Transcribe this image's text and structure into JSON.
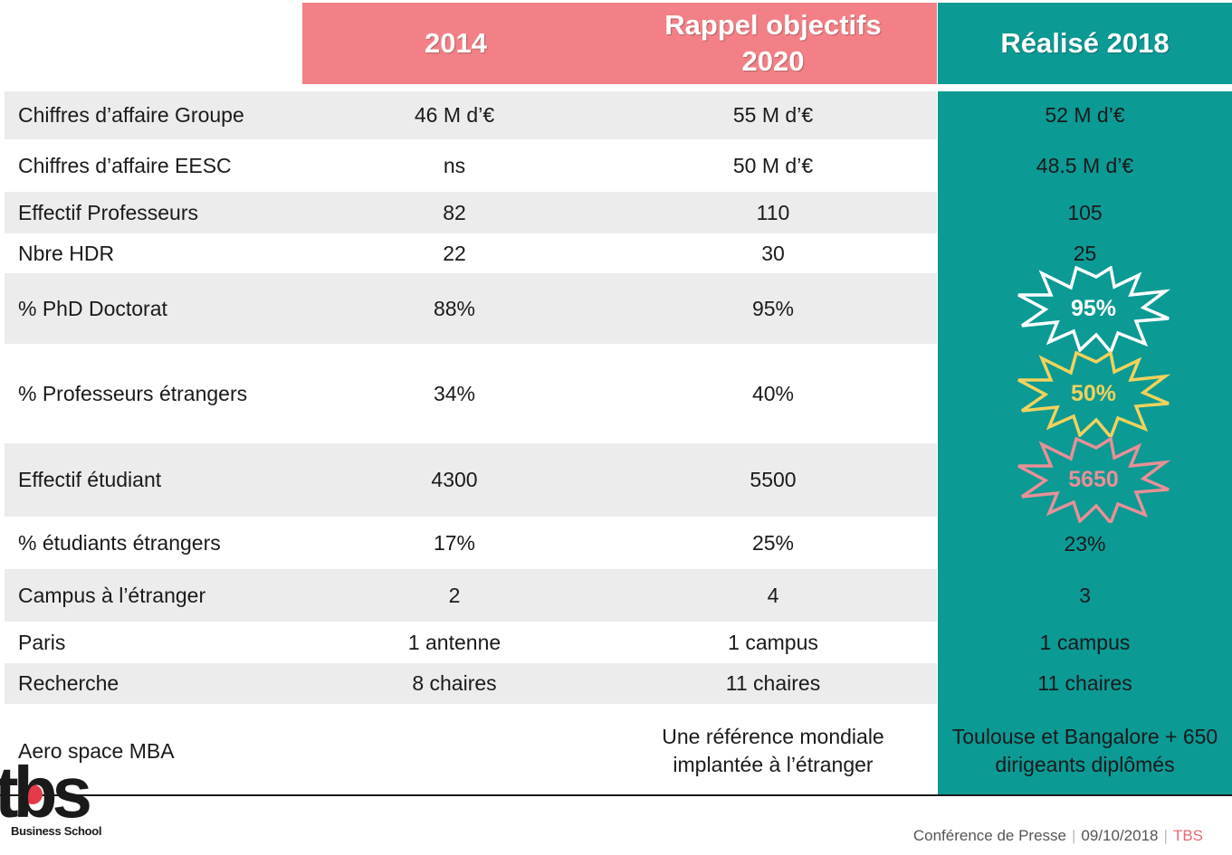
{
  "headers": {
    "col_2014": "2014",
    "col_objectives": "Rappel objectifs 2020",
    "col_realised": "Réalisé 2018"
  },
  "rows": [
    {
      "label": "Chiffres d’affaire Groupe",
      "v2014": "46 M d’€",
      "objective": "55 M d’€",
      "realised": "52 M d’€"
    },
    {
      "label": "Chiffres d’affaire EESC",
      "v2014": "ns",
      "objective": "50 M d’€",
      "realised": "48.5 M d’€"
    },
    {
      "label": "Effectif Professeurs",
      "v2014": "82",
      "objective": "110",
      "realised": "105"
    },
    {
      "label": "Nbre HDR",
      "v2014": "22",
      "objective": "30",
      "realised": "25"
    },
    {
      "label": "% PhD Doctorat",
      "v2014": "88%",
      "objective": "95%",
      "realised": "95%"
    },
    {
      "label": "% Professeurs étrangers",
      "v2014": "34%",
      "objective": "40%",
      "realised": "50%"
    },
    {
      "label": "Effectif étudiant",
      "v2014": "4300",
      "objective": "5500",
      "realised": "5650"
    },
    {
      "label": "% étudiants étrangers",
      "v2014": "17%",
      "objective": "25%",
      "realised": "23%"
    },
    {
      "label": "Campus à l’étranger",
      "v2014": "2",
      "objective": "4",
      "realised": "3"
    },
    {
      "label": "Paris",
      "v2014": "1 antenne",
      "objective": "1 campus",
      "realised": "1 campus"
    },
    {
      "label": "Recherche",
      "v2014": "8 chaires",
      "objective": "11 chaires",
      "realised": "11 chaires"
    },
    {
      "label": "Aero space MBA",
      "v2014": "",
      "objective": "Une référence mondiale implantée à l’étranger",
      "realised": "Toulouse et Bangalore + 650 dirigeants diplômés"
    }
  ],
  "colors": {
    "header_pink": "#f28086",
    "teal": "#0b9a94",
    "burst_white": "#ffffff",
    "burst_yellow": "#f2d25c",
    "burst_pink": "#e89096",
    "row_shade": "#ececec"
  },
  "logo": {
    "text": "tbs",
    "subtitle": "Business School"
  },
  "footer": {
    "event": "Conférence de Presse",
    "date": "09/10/2018",
    "brand": "TBS"
  }
}
